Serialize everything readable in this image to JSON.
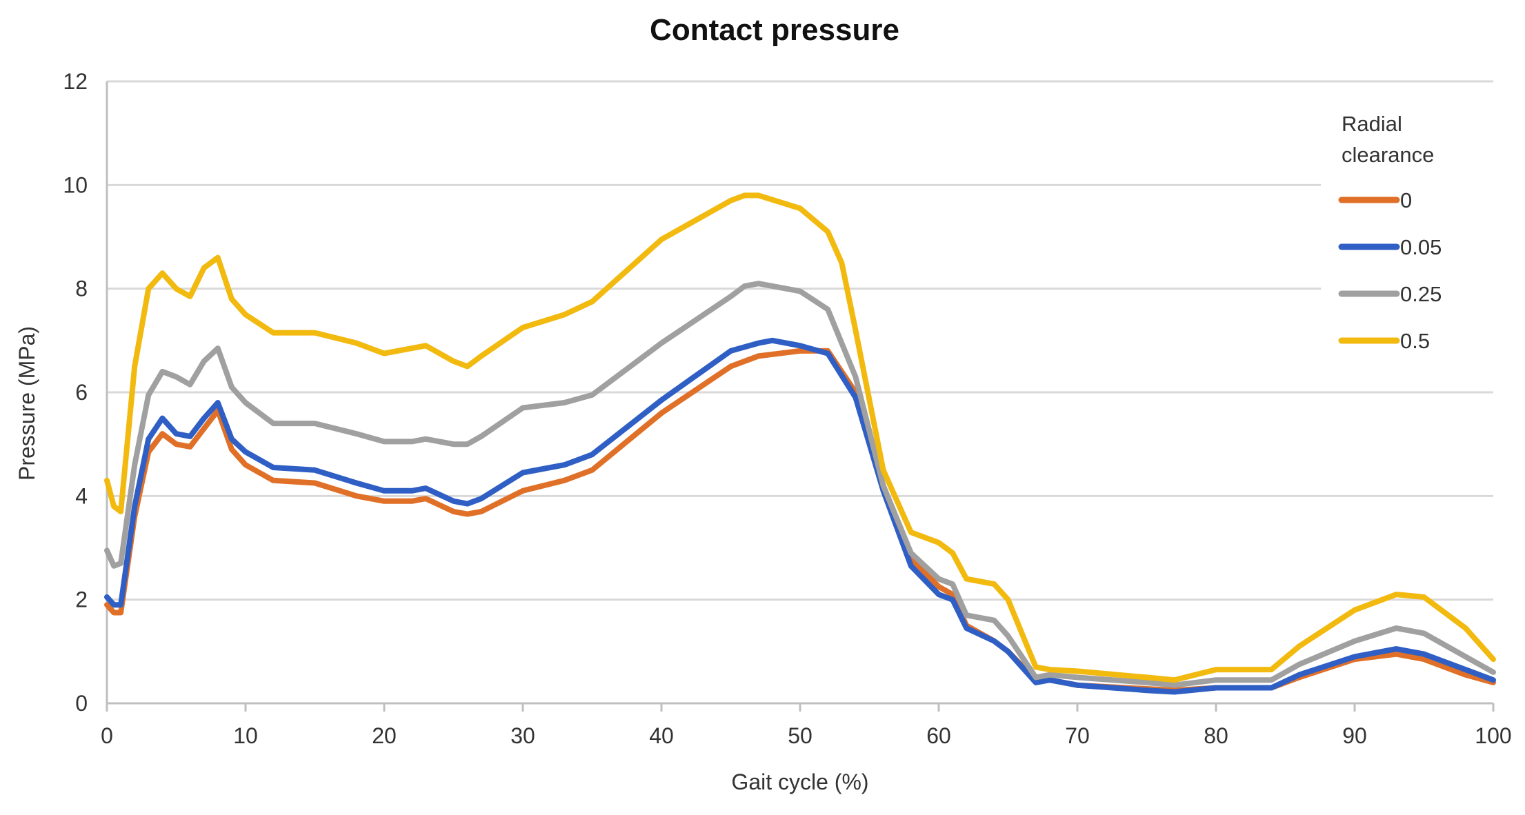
{
  "chart_data": {
    "type": "line",
    "title": "Contact pressure",
    "xlabel": "Gait cycle (%)",
    "ylabel": "Pressure (MPa)",
    "xlim": [
      0,
      100
    ],
    "ylim": [
      0,
      12
    ],
    "xticks": [
      0,
      10,
      20,
      30,
      40,
      50,
      60,
      70,
      80,
      90,
      100
    ],
    "yticks": [
      0,
      2,
      4,
      6,
      8,
      10,
      12
    ],
    "grid": "horizontal",
    "legend": {
      "title_lines": [
        "Radial",
        "clearance"
      ],
      "position": "top-right"
    },
    "series": [
      {
        "name": "0",
        "color": "#E07028",
        "points": [
          [
            0,
            1.9
          ],
          [
            0.5,
            1.75
          ],
          [
            1,
            1.75
          ],
          [
            2,
            3.6
          ],
          [
            3,
            4.85
          ],
          [
            4,
            5.2
          ],
          [
            5,
            5.0
          ],
          [
            6,
            4.95
          ],
          [
            7,
            5.3
          ],
          [
            8,
            5.65
          ],
          [
            9,
            4.9
          ],
          [
            10,
            4.6
          ],
          [
            12,
            4.3
          ],
          [
            15,
            4.25
          ],
          [
            18,
            4.0
          ],
          [
            20,
            3.9
          ],
          [
            22,
            3.9
          ],
          [
            23,
            3.95
          ],
          [
            25,
            3.7
          ],
          [
            26,
            3.65
          ],
          [
            27,
            3.7
          ],
          [
            30,
            4.1
          ],
          [
            33,
            4.3
          ],
          [
            35,
            4.5
          ],
          [
            40,
            5.6
          ],
          [
            45,
            6.5
          ],
          [
            47,
            6.7
          ],
          [
            50,
            6.8
          ],
          [
            52,
            6.8
          ],
          [
            54,
            6.0
          ],
          [
            56,
            4.2
          ],
          [
            58,
            2.8
          ],
          [
            60,
            2.25
          ],
          [
            61,
            2.1
          ],
          [
            62,
            1.5
          ],
          [
            64,
            1.2
          ],
          [
            65,
            1.0
          ],
          [
            67,
            0.45
          ],
          [
            68,
            0.45
          ],
          [
            70,
            0.35
          ],
          [
            75,
            0.28
          ],
          [
            77,
            0.25
          ],
          [
            80,
            0.3
          ],
          [
            84,
            0.3
          ],
          [
            86,
            0.5
          ],
          [
            90,
            0.85
          ],
          [
            93,
            0.95
          ],
          [
            95,
            0.85
          ],
          [
            98,
            0.55
          ],
          [
            100,
            0.4
          ]
        ]
      },
      {
        "name": "0.05",
        "color": "#2F5FC4",
        "points": [
          [
            0,
            2.05
          ],
          [
            0.5,
            1.9
          ],
          [
            1,
            1.9
          ],
          [
            2,
            3.8
          ],
          [
            3,
            5.1
          ],
          [
            4,
            5.5
          ],
          [
            5,
            5.2
          ],
          [
            6,
            5.15
          ],
          [
            7,
            5.5
          ],
          [
            8,
            5.8
          ],
          [
            9,
            5.1
          ],
          [
            10,
            4.85
          ],
          [
            12,
            4.55
          ],
          [
            15,
            4.5
          ],
          [
            18,
            4.25
          ],
          [
            20,
            4.1
          ],
          [
            22,
            4.1
          ],
          [
            23,
            4.15
          ],
          [
            25,
            3.9
          ],
          [
            26,
            3.85
          ],
          [
            27,
            3.95
          ],
          [
            30,
            4.45
          ],
          [
            33,
            4.6
          ],
          [
            35,
            4.8
          ],
          [
            40,
            5.85
          ],
          [
            45,
            6.8
          ],
          [
            47,
            6.95
          ],
          [
            48,
            7.0
          ],
          [
            50,
            6.9
          ],
          [
            52,
            6.75
          ],
          [
            54,
            5.9
          ],
          [
            56,
            4.1
          ],
          [
            58,
            2.65
          ],
          [
            60,
            2.1
          ],
          [
            61,
            2.0
          ],
          [
            62,
            1.45
          ],
          [
            64,
            1.2
          ],
          [
            65,
            1.0
          ],
          [
            67,
            0.4
          ],
          [
            68,
            0.45
          ],
          [
            70,
            0.35
          ],
          [
            75,
            0.25
          ],
          [
            77,
            0.22
          ],
          [
            80,
            0.3
          ],
          [
            84,
            0.3
          ],
          [
            86,
            0.55
          ],
          [
            90,
            0.9
          ],
          [
            93,
            1.05
          ],
          [
            95,
            0.95
          ],
          [
            98,
            0.65
          ],
          [
            100,
            0.45
          ]
        ]
      },
      {
        "name": "0.25",
        "color": "#A0A0A0",
        "points": [
          [
            0,
            2.95
          ],
          [
            0.5,
            2.65
          ],
          [
            1,
            2.7
          ],
          [
            2,
            4.6
          ],
          [
            3,
            5.95
          ],
          [
            4,
            6.4
          ],
          [
            5,
            6.3
          ],
          [
            6,
            6.15
          ],
          [
            7,
            6.6
          ],
          [
            8,
            6.85
          ],
          [
            9,
            6.1
          ],
          [
            10,
            5.8
          ],
          [
            12,
            5.4
          ],
          [
            15,
            5.4
          ],
          [
            18,
            5.2
          ],
          [
            20,
            5.05
          ],
          [
            22,
            5.05
          ],
          [
            23,
            5.1
          ],
          [
            25,
            5.0
          ],
          [
            26,
            5.0
          ],
          [
            27,
            5.15
          ],
          [
            30,
            5.7
          ],
          [
            33,
            5.8
          ],
          [
            35,
            5.95
          ],
          [
            40,
            6.95
          ],
          [
            45,
            7.85
          ],
          [
            46,
            8.05
          ],
          [
            47,
            8.1
          ],
          [
            50,
            7.95
          ],
          [
            52,
            7.6
          ],
          [
            54,
            6.3
          ],
          [
            56,
            4.2
          ],
          [
            58,
            2.9
          ],
          [
            60,
            2.4
          ],
          [
            61,
            2.3
          ],
          [
            62,
            1.7
          ],
          [
            64,
            1.6
          ],
          [
            65,
            1.3
          ],
          [
            67,
            0.5
          ],
          [
            68,
            0.55
          ],
          [
            70,
            0.5
          ],
          [
            75,
            0.4
          ],
          [
            77,
            0.35
          ],
          [
            80,
            0.45
          ],
          [
            84,
            0.45
          ],
          [
            86,
            0.75
          ],
          [
            90,
            1.2
          ],
          [
            93,
            1.45
          ],
          [
            95,
            1.35
          ],
          [
            98,
            0.9
          ],
          [
            100,
            0.6
          ]
        ]
      },
      {
        "name": "0.5",
        "color": "#F2B90F",
        "points": [
          [
            0,
            4.3
          ],
          [
            0.5,
            3.8
          ],
          [
            1,
            3.7
          ],
          [
            2,
            6.5
          ],
          [
            3,
            8.0
          ],
          [
            4,
            8.3
          ],
          [
            5,
            8.0
          ],
          [
            6,
            7.85
          ],
          [
            7,
            8.4
          ],
          [
            8,
            8.6
          ],
          [
            9,
            7.8
          ],
          [
            10,
            7.5
          ],
          [
            12,
            7.15
          ],
          [
            15,
            7.15
          ],
          [
            18,
            6.95
          ],
          [
            20,
            6.75
          ],
          [
            22,
            6.85
          ],
          [
            23,
            6.9
          ],
          [
            25,
            6.6
          ],
          [
            26,
            6.5
          ],
          [
            27,
            6.7
          ],
          [
            30,
            7.25
          ],
          [
            33,
            7.5
          ],
          [
            35,
            7.75
          ],
          [
            40,
            8.95
          ],
          [
            45,
            9.7
          ],
          [
            46,
            9.8
          ],
          [
            47,
            9.8
          ],
          [
            50,
            9.55
          ],
          [
            52,
            9.1
          ],
          [
            53,
            8.5
          ],
          [
            54,
            7.2
          ],
          [
            56,
            4.5
          ],
          [
            58,
            3.3
          ],
          [
            60,
            3.1
          ],
          [
            61,
            2.9
          ],
          [
            62,
            2.4
          ],
          [
            64,
            2.3
          ],
          [
            65,
            2.0
          ],
          [
            67,
            0.7
          ],
          [
            68,
            0.65
          ],
          [
            70,
            0.62
          ],
          [
            75,
            0.5
          ],
          [
            77,
            0.45
          ],
          [
            80,
            0.65
          ],
          [
            84,
            0.65
          ],
          [
            86,
            1.1
          ],
          [
            90,
            1.8
          ],
          [
            93,
            2.1
          ],
          [
            95,
            2.05
          ],
          [
            98,
            1.45
          ],
          [
            100,
            0.85
          ]
        ]
      }
    ]
  }
}
